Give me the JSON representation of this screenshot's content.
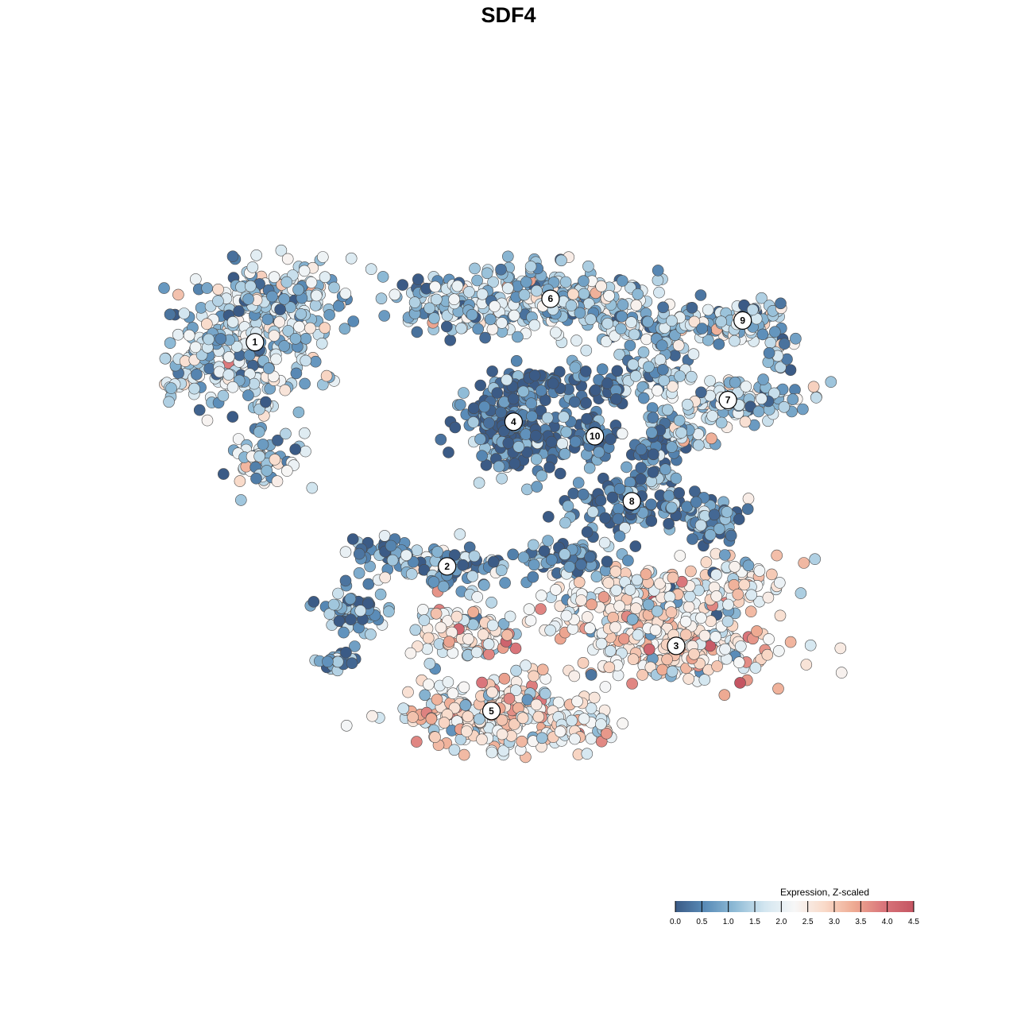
{
  "title": "SDF4",
  "chart_data": {
    "type": "scatter",
    "title": "SDF4",
    "xlabel": "",
    "ylabel": "",
    "grid": false,
    "axes_visible": false,
    "color_scale": {
      "title": "Expression, Z-scaled",
      "domain": [
        0,
        4.5
      ],
      "ticks": [
        "0.0",
        "0.5",
        "1.0",
        "1.5",
        "2.0",
        "2.5",
        "3.0",
        "3.5",
        "4.0",
        "4.5"
      ],
      "colors": [
        "#3b5b86",
        "#5a8cb8",
        "#8fbbd6",
        "#d3e6f0",
        "#f7f7f7",
        "#f9dac9",
        "#eeaa92",
        "#d9747a",
        "#c45562"
      ],
      "legend_placement": "bottom-right"
    },
    "clusters": [
      {
        "label": "1",
        "x": 0.13,
        "y": 0.27,
        "expr": 1.6,
        "spread": "wide"
      },
      {
        "label": "2",
        "x": 0.39,
        "y": 0.58,
        "expr": 0.9
      },
      {
        "label": "3",
        "x": 0.7,
        "y": 0.69,
        "expr": 2.5
      },
      {
        "label": "4",
        "x": 0.48,
        "y": 0.38,
        "expr": 0.4
      },
      {
        "label": "5",
        "x": 0.45,
        "y": 0.78,
        "expr": 2.6
      },
      {
        "label": "6",
        "x": 0.53,
        "y": 0.21,
        "expr": 1.5
      },
      {
        "label": "7",
        "x": 0.77,
        "y": 0.35,
        "expr": 1.6
      },
      {
        "label": "8",
        "x": 0.64,
        "y": 0.49,
        "expr": 0.7
      },
      {
        "label": "9",
        "x": 0.79,
        "y": 0.24,
        "expr": 1.5
      },
      {
        "label": "10",
        "x": 0.59,
        "y": 0.4,
        "expr": 0.5
      }
    ]
  }
}
